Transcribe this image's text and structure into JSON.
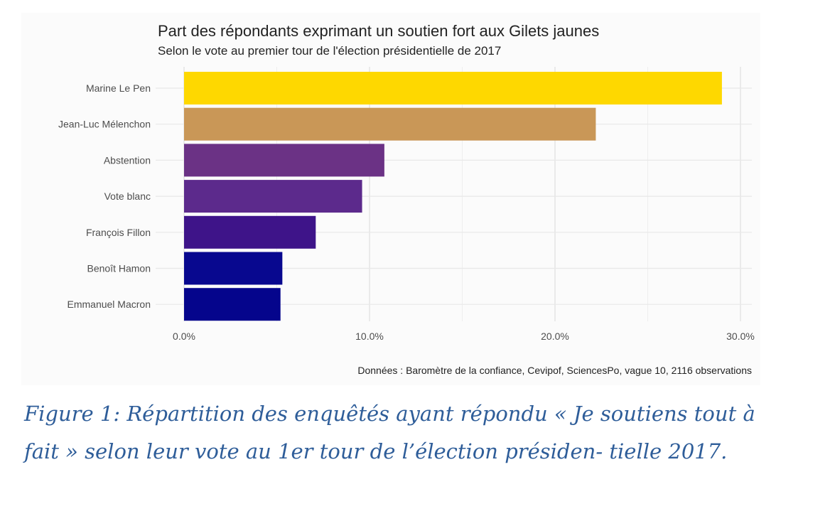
{
  "chart_data": {
    "type": "bar",
    "orientation": "horizontal",
    "title": "Part des répondants exprimant un soutien fort aux Gilets jaunes",
    "subtitle": "Selon le vote au premier tour de l'élection présidentielle de 2017",
    "categories": [
      "Marine Le Pen",
      "Jean-Luc Mélenchon",
      "Abstention",
      "Vote blanc",
      "François Fillon",
      "Benoît Hamon",
      "Emmanuel Macron"
    ],
    "values": [
      29.0,
      22.2,
      10.8,
      9.6,
      7.1,
      5.3,
      5.2
    ],
    "colors": [
      "#fed800",
      "#c99757",
      "#6b3285",
      "#5c2a8c",
      "#3e1489",
      "#08088f",
      "#05058c"
    ],
    "xlim": [
      0,
      30
    ],
    "xticks": [
      0,
      10,
      20,
      30
    ],
    "xtick_labels": [
      "0.0%",
      "10.0%",
      "20.0%",
      "30.0%"
    ],
    "xlabel": "",
    "ylabel": "",
    "grid": true,
    "caption": "Données : Baromètre de la confiance, Cevipof, SciencesPo, vague 10, 2116 observations"
  },
  "figure_caption": "Figure 1: Répartition des enquêtés ayant répondu « Je soutiens tout à fait » selon leur vote au 1er tour de l’élection présiden- tielle 2017."
}
